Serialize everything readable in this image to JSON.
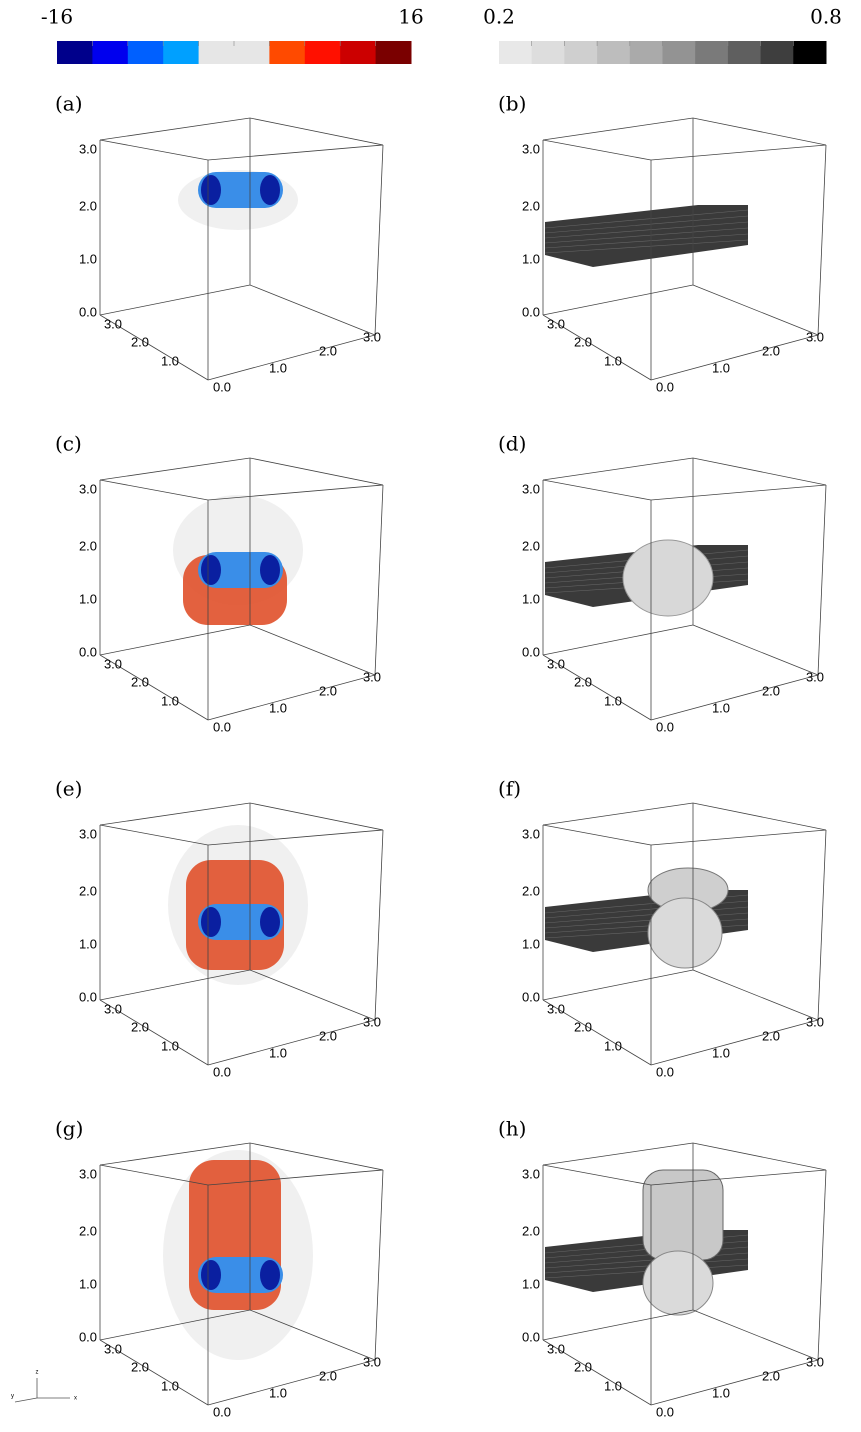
{
  "colorbars": [
    {
      "min_label": "-16",
      "max_label": "16",
      "colors": [
        "#00008b",
        "#0000ee",
        "#0060ff",
        "#00a0ff",
        "#e6e6e6",
        "#e6e6e6",
        "#ff4a00",
        "#ff1000",
        "#cc0000",
        "#7a0000"
      ]
    },
    {
      "min_label": "0.2",
      "max_label": "0.8",
      "colors": [
        "#e8e8e8",
        "#dddddd",
        "#cfcfcf",
        "#bdbdbd",
        "#aaaaaa",
        "#939393",
        "#7a7a7a",
        "#5f5f5f",
        "#3e3e3e",
        "#000000"
      ]
    }
  ],
  "panels": [
    {
      "label": "(a)",
      "z_ticks": [
        "0.0",
        "1.0",
        "2.0",
        "3.0"
      ],
      "y_ticks": [
        "1.0",
        "2.0",
        "3.0"
      ],
      "x_ticks": [
        "0.0",
        "1.0",
        "2.0",
        "3.0"
      ]
    },
    {
      "label": "(b)",
      "z_ticks": [
        "0.0",
        "1.0",
        "2.0",
        "3.0"
      ],
      "y_ticks": [
        "1.0",
        "2.0",
        "3.0"
      ],
      "x_ticks": [
        "0.0",
        "1.0",
        "2.0",
        "3.0"
      ]
    },
    {
      "label": "(c)",
      "z_ticks": [
        "0.0",
        "1.0",
        "2.0",
        "3.0"
      ],
      "y_ticks": [
        "1.0",
        "2.0",
        "3.0"
      ],
      "x_ticks": [
        "0.0",
        "1.0",
        "2.0",
        "3.0"
      ]
    },
    {
      "label": "(d)",
      "z_ticks": [
        "0.0",
        "1.0",
        "2.0",
        "3.0"
      ],
      "y_ticks": [
        "1.0",
        "2.0",
        "3.0"
      ],
      "x_ticks": [
        "0.0",
        "1.0",
        "2.0",
        "3.0"
      ]
    },
    {
      "label": "(e)",
      "z_ticks": [
        "0.0",
        "1.0",
        "2.0",
        "3.0"
      ],
      "y_ticks": [
        "1.0",
        "2.0",
        "3.0"
      ],
      "x_ticks": [
        "0.0",
        "1.0",
        "2.0",
        "3.0"
      ]
    },
    {
      "label": "(f)",
      "z_ticks": [
        "0.0",
        "1.0",
        "2.0",
        "3.0"
      ],
      "y_ticks": [
        "1.0",
        "2.0",
        "3.0"
      ],
      "x_ticks": [
        "0.0",
        "1.0",
        "2.0",
        "3.0"
      ]
    },
    {
      "label": "(g)",
      "z_ticks": [
        "0.0",
        "1.0",
        "2.0",
        "3.0"
      ],
      "y_ticks": [
        "1.0",
        "2.0",
        "3.0"
      ],
      "x_ticks": [
        "0.0",
        "1.0",
        "2.0",
        "3.0"
      ]
    },
    {
      "label": "(h)",
      "z_ticks": [
        "0.0",
        "1.0",
        "2.0",
        "3.0"
      ],
      "y_ticks": [
        "1.0",
        "2.0",
        "3.0"
      ],
      "x_ticks": [
        "0.0",
        "1.0",
        "2.0",
        "3.0"
      ]
    }
  ],
  "triad": {
    "z": "z",
    "y": "y",
    "x": "x"
  }
}
